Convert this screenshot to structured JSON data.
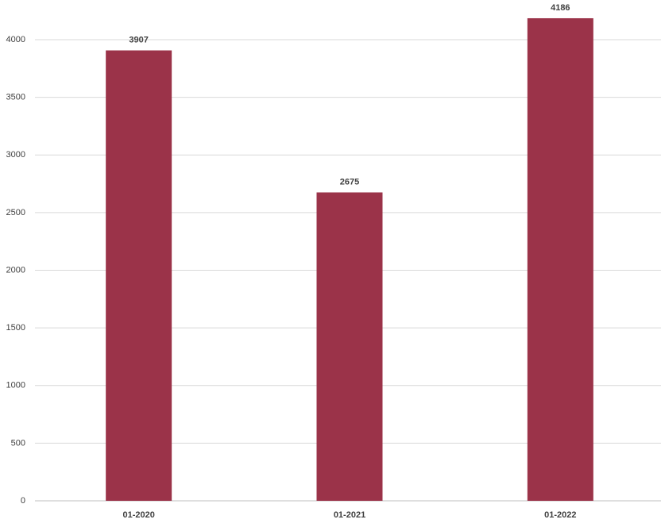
{
  "chart_data": {
    "type": "bar",
    "categories": [
      "01-2020",
      "01-2021",
      "01-2022"
    ],
    "values": [
      3907,
      2675,
      4186
    ],
    "color": "#9b3349",
    "ylim": [
      0,
      4300
    ],
    "yticks": [
      0,
      500,
      1000,
      1500,
      2000,
      2500,
      3000,
      3500,
      4000
    ],
    "grid": true
  }
}
